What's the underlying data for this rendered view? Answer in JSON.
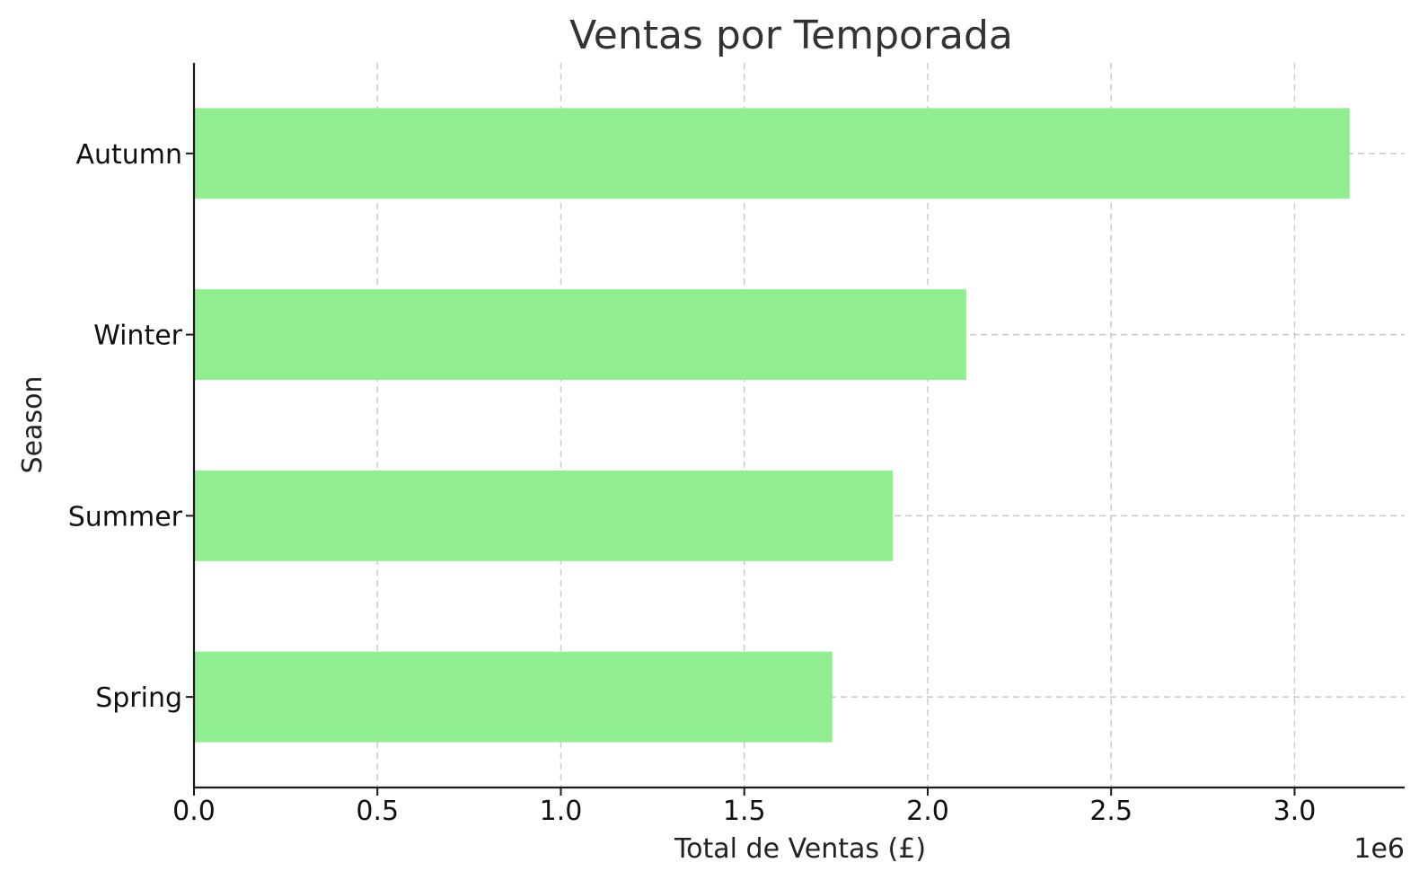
{
  "chart_data": {
    "type": "bar",
    "orientation": "horizontal",
    "title": "Ventas por Temporada",
    "xlabel": "Total de Ventas (£)",
    "ylabel": "Season",
    "offset_label": "1e6",
    "categories": [
      "Autumn",
      "Winter",
      "Summer",
      "Spring"
    ],
    "values": [
      3150000,
      2105000,
      1905000,
      1740000
    ],
    "xlim": [
      0,
      3300000
    ],
    "xticks": [
      0,
      500000,
      1000000,
      1500000,
      2000000,
      2500000,
      3000000
    ],
    "xtick_labels": [
      "0.0",
      "0.5",
      "1.0",
      "1.5",
      "2.0",
      "2.5",
      "3.0"
    ],
    "bar_color": "#90ee90",
    "grid": true,
    "legend": "none"
  }
}
